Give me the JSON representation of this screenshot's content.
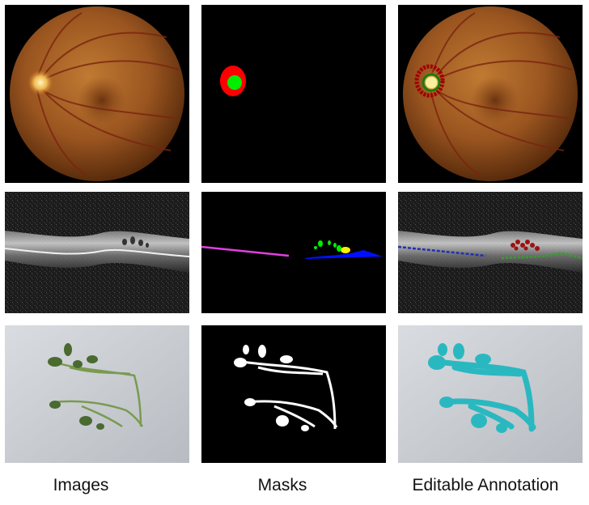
{
  "columns": [
    "Images",
    "Masks",
    "Editable Annotation"
  ],
  "rows": [
    "fundus",
    "oct",
    "plant"
  ],
  "colors": {
    "mask_red": "#ff0000",
    "mask_green": "#00ee00",
    "mask_magenta": "#e040e0",
    "mask_blue": "#0010ff",
    "mask_yellow": "#ffee00",
    "annotation_cyan": "#2ab8c0",
    "background_black": "#000000"
  },
  "icons": {
    "fundus_image": "retina-fundus-photo",
    "oct_image": "oct-scan",
    "plant_image": "plant-specimen-photo"
  }
}
